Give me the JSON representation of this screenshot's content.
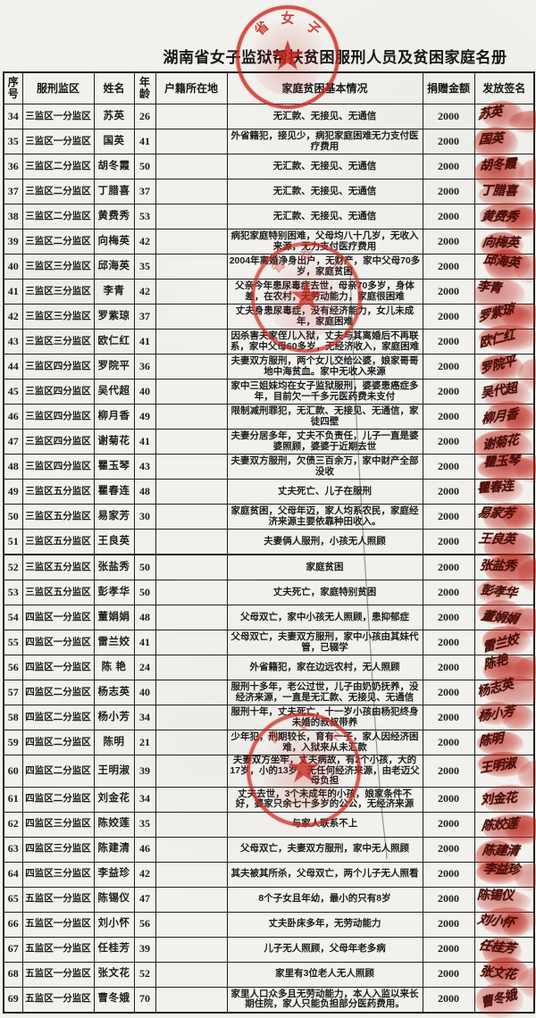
{
  "page": {
    "title": "湖南省女子监狱帮扶贫困服刑人员及贫困家庭名册"
  },
  "seal": {
    "visible_chars": [
      "省",
      "女",
      "子"
    ],
    "star": "★",
    "color": "#c6251b"
  },
  "table": {
    "headers": {
      "seq": "序号",
      "district": "服刑监区",
      "name": "姓名",
      "age": "年龄",
      "residence": "户籍所在地",
      "situation": "家庭贫困基本情况",
      "amount": "捐赠金额",
      "signature": "发放签名"
    },
    "rows": [
      {
        "seq": "34",
        "district": "三监区一分监区",
        "name": "苏英",
        "age": "26",
        "residence": "",
        "situation": "无汇款、无接见、无通信",
        "amount": "2000",
        "signature": "苏英"
      },
      {
        "seq": "35",
        "district": "三监区一分监区",
        "name": "国英",
        "age": "41",
        "residence": "",
        "situation": "外省籍犯，接见少，病犯家庭困难无力支付医疗费用",
        "amount": "2000",
        "signature": "国英"
      },
      {
        "seq": "36",
        "district": "三监区二分监区",
        "name": "胡冬霞",
        "age": "50",
        "residence": "",
        "situation": "无汇款、无接见、无通信",
        "amount": "2000",
        "signature": "胡冬霞"
      },
      {
        "seq": "37",
        "district": "三监区二分监区",
        "name": "丁腊喜",
        "age": "37",
        "residence": "",
        "situation": "无汇款、无接见、无通信",
        "amount": "2000",
        "signature": "丁腊喜"
      },
      {
        "seq": "38",
        "district": "三监区二分监区",
        "name": "黄费秀",
        "age": "53",
        "residence": "",
        "situation": "无汇款、无接见、无通信",
        "amount": "2000",
        "signature": "黄费秀"
      },
      {
        "seq": "39",
        "district": "三监区二分监区",
        "name": "向梅英",
        "age": "42",
        "residence": "",
        "situation": "病犯家庭特别困难，父母均八十几岁，无收入来源，无力支付医疗费用",
        "amount": "2000",
        "signature": "向梅英"
      },
      {
        "seq": "40",
        "district": "三监区三分监区",
        "name": "邱海英",
        "age": "35",
        "residence": "",
        "situation": "2004年离婚净身出户，无财产，家中父母70多岁，家庭贫困",
        "amount": "2000",
        "signature": "邱海英"
      },
      {
        "seq": "41",
        "district": "三监区三分监区",
        "name": "李青",
        "age": "42",
        "residence": "",
        "situation": "父亲今年患尿毒症去世，母亲70多岁，身体差，在农村，无劳动能力，家庭很困难",
        "amount": "2000",
        "signature": "李青"
      },
      {
        "seq": "42",
        "district": "三监区三分监区",
        "name": "罗紫琼",
        "age": "37",
        "residence": "",
        "situation": "丈夫身患尿毒症，没有经济能力，女儿未成年，家庭困难",
        "amount": "2000",
        "signature": "罗紫琼"
      },
      {
        "seq": "43",
        "district": "三监区三分监区",
        "name": "欧仁红",
        "age": "41",
        "residence": "",
        "situation": "因杀害夫家侄儿入狱，丈夫与其离婚后不再联系，家中父母60多岁，无经济收入，家庭困难",
        "amount": "2000",
        "signature": "欧仁红"
      },
      {
        "seq": "44",
        "district": "三监区四分监区",
        "name": "罗院平",
        "age": "36",
        "residence": "",
        "situation": "夫妻双方服刑，两个女儿交给公婆，娘家哥哥地中海贫血。家中无收入来源",
        "amount": "2000",
        "signature": "罗院平"
      },
      {
        "seq": "45",
        "district": "三监区四分监区",
        "name": "吴代超",
        "age": "40",
        "residence": "",
        "situation": "家中三姐妹均在女子监狱服刑，婆婆患癌症多年，目前欠一千多元医药费未支付",
        "amount": "2000",
        "signature": "吴代超"
      },
      {
        "seq": "46",
        "district": "三监区四分监区",
        "name": "柳月香",
        "age": "49",
        "residence": "",
        "situation": "限制减刑罪犯，无汇款、无接见、无通信，家徒四壁",
        "amount": "2000",
        "signature": "柳月香"
      },
      {
        "seq": "47",
        "district": "三监区四分监区",
        "name": "谢菊花",
        "age": "41",
        "residence": "",
        "situation": "夫妻分居多年，丈夫不负责任，儿子一直是婆婆照顾，婆婆于近期去世",
        "amount": "2000",
        "signature": "谢菊花"
      },
      {
        "seq": "48",
        "district": "三监区四分监区",
        "name": "瞿玉琴",
        "age": "43",
        "residence": "",
        "situation": "夫妻双方服刑，欠债三百余万，家中财产全部没收",
        "amount": "2000",
        "signature": "瞿玉琴"
      },
      {
        "seq": "49",
        "district": "三监区五分监区",
        "name": "瞿春连",
        "age": "48",
        "residence": "",
        "situation": "丈夫死亡、儿子在服刑",
        "amount": "2000",
        "signature": "瞿春连"
      },
      {
        "seq": "50",
        "district": "三监区五分监区",
        "name": "易家芳",
        "age": "30",
        "residence": "",
        "situation": "家庭贫困，父母年迈，家人均系农民，家庭经济来源主要依靠种田收入。",
        "amount": "2000",
        "signature": "易家芳"
      },
      {
        "seq": "51",
        "district": "三监区五分监区",
        "name": "王良英",
        "age": "",
        "residence": "",
        "situation": "夫妻俩人服刑，小孩无人照顾",
        "amount": "2000",
        "signature": "王良英"
      },
      {
        "seq": "52",
        "district": "三监区五分监区",
        "name": "张盐秀",
        "age": "50",
        "residence": "",
        "situation": "家庭贫困",
        "amount": "2000",
        "signature": "张盐秀"
      },
      {
        "seq": "53",
        "district": "三监区五分监区",
        "name": "彭孝华",
        "age": "50",
        "residence": "",
        "situation": "丈夫死亡，家庭特别贫困",
        "amount": "2000",
        "signature": "彭孝华"
      },
      {
        "seq": "54",
        "district": "四监区一分监区",
        "name": "董娟娟",
        "age": "48",
        "residence": "",
        "situation": "父母双亡，家中小孩无人照顾，患抑郁症",
        "amount": "2000",
        "signature": "董娟娟"
      },
      {
        "seq": "55",
        "district": "四监区一分监区",
        "name": "雷兰姣",
        "age": "41",
        "residence": "",
        "situation": "父母双亡，夫妻双方服刑，家中小孩由其妹代管，已辍学",
        "amount": "2000",
        "signature": "雷兰姣"
      },
      {
        "seq": "56",
        "district": "四监区一分监区",
        "name": "陈 艳",
        "age": "24",
        "residence": "",
        "situation": "外省籍犯，家在边远农村，无人照顾",
        "amount": "2000",
        "signature": "陈艳"
      },
      {
        "seq": "57",
        "district": "四监区二分监区",
        "name": "杨志英",
        "age": "40",
        "residence": "",
        "situation": "服刑十多年，老公过世，儿子由奶奶抚养，没经济来源，一直是无汇款、无接见、无通信",
        "amount": "2000",
        "signature": "杨志英"
      },
      {
        "seq": "58",
        "district": "四监区二分监区",
        "name": "杨小芳",
        "age": "34",
        "residence": "",
        "situation": "服刑十年，丈夫死亡，十一岁小孩由杨犯终身未婚的叔叔带养",
        "amount": "2000",
        "signature": "杨小芳"
      },
      {
        "seq": "59",
        "district": "四监区二分监区",
        "name": "陈明",
        "age": "21",
        "residence": "",
        "situation": "少年犯，刑期较长，育有一子，家人因经济困难，入狱来从未汇款",
        "amount": "2000",
        "signature": "陈明"
      },
      {
        "seq": "60",
        "district": "四监区二分监区",
        "name": "王明淑",
        "age": "39",
        "residence": "",
        "situation": "夫妻双方坐牢，丈夫病故，有2个小孩，大的17岁，小的13岁，无任何经济来源，由老迈父母负担",
        "amount": "2000",
        "signature": "王明淑"
      },
      {
        "seq": "61",
        "district": "四监区二分监区",
        "name": "刘金花",
        "age": "34",
        "residence": "",
        "situation": "丈夫去世，3个未成年的小孩，娘家条件不好，婆家只余七十多岁的公公，无经济来源",
        "amount": "2000",
        "signature": "刘金花"
      },
      {
        "seq": "62",
        "district": "四监区三分监区",
        "name": "陈姣莲",
        "age": "35",
        "residence": "",
        "situation": "与家人联系不上",
        "amount": "2000",
        "signature": "陈姣莲"
      },
      {
        "seq": "63",
        "district": "四监区三分监区",
        "name": "陈建清",
        "age": "46",
        "residence": "",
        "situation": "父母双亡，夫妻双方服刑，家中无人照顾",
        "amount": "2000",
        "signature": "陈建清"
      },
      {
        "seq": "64",
        "district": "四监区三分监区",
        "name": "李益珍",
        "age": "42",
        "residence": "",
        "situation": "其夫被其所杀，父母双亡，两个儿子无人照看",
        "amount": "2000",
        "signature": "李益珍"
      },
      {
        "seq": "65",
        "district": "五监区一分监区",
        "name": "陈锡仪",
        "age": "47",
        "residence": "",
        "situation": "8个子女且年幼，最小的只有8岁",
        "amount": "2000",
        "signature": "陈锡仪"
      },
      {
        "seq": "66",
        "district": "五监区一分监区",
        "name": "刘小怀",
        "age": "56",
        "residence": "",
        "situation": "丈夫卧床多年，无劳动能力",
        "amount": "2000",
        "signature": "刘小怀"
      },
      {
        "seq": "67",
        "district": "五监区一分监区",
        "name": "任桂芳",
        "age": "39",
        "residence": "",
        "situation": "儿子无人照顾，父母年老多病",
        "amount": "2000",
        "signature": "任桂芳"
      },
      {
        "seq": "68",
        "district": "五监区一分监区",
        "name": "张文花",
        "age": "52",
        "residence": "",
        "situation": "家里有3位老人无人照顾",
        "amount": "2000",
        "signature": "张文花"
      },
      {
        "seq": "69",
        "district": "五监区一分监区",
        "name": "曹冬娥",
        "age": "70",
        "residence": "",
        "situation": "家里人口众多且无劳动能力，本人入监以来长期住院，家人只能负担部分医药费用。",
        "amount": "2000",
        "signature": "曹冬娥"
      }
    ]
  }
}
